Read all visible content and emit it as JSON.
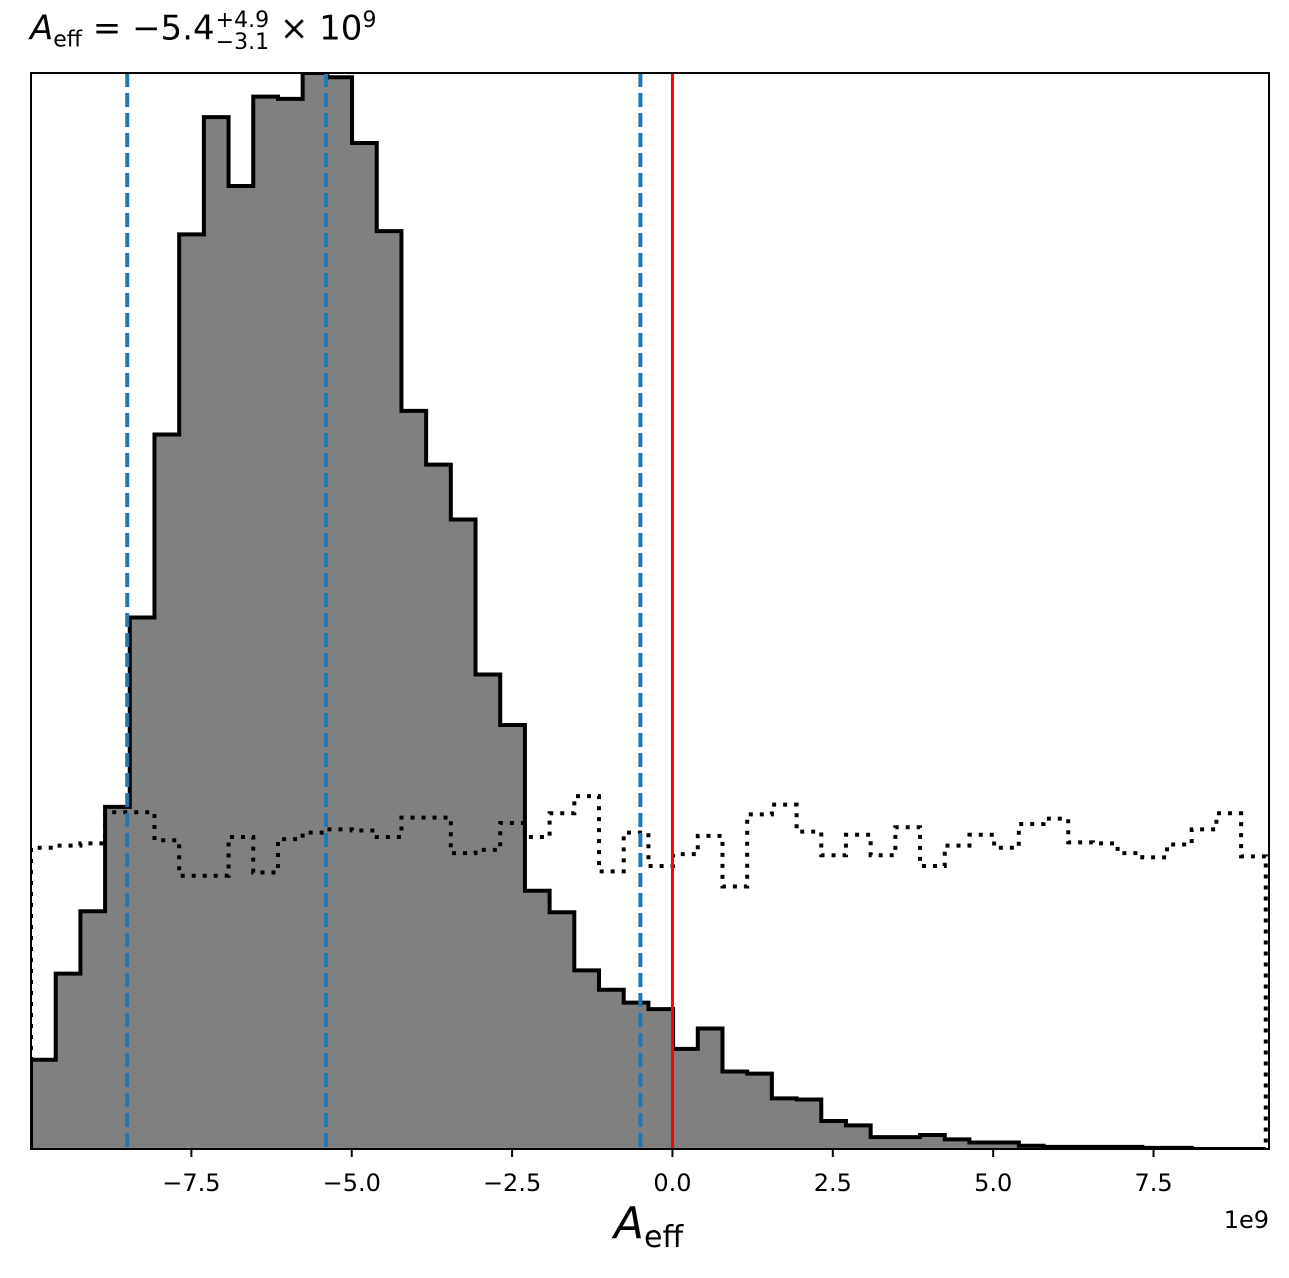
{
  "chart_data": {
    "type": "histogram",
    "title": {
      "symbol": "A",
      "symbol_sub": "eff",
      "median_text": " = −5.4",
      "err_plus": "+4.9",
      "err_minus": "−3.1",
      "multiplier_text": " × 10",
      "exponent": "9"
    },
    "xlabel": {
      "symbol": "A",
      "sub": "eff"
    },
    "x_offset_label": "1e9",
    "x_unit_scale": 1000000000,
    "xlim": [
      -10.0,
      9.3
    ],
    "ylim": [
      0,
      1.0
    ],
    "xticks": [
      -7.5,
      -5.0,
      -2.5,
      0.0,
      2.5,
      5.0,
      7.5
    ],
    "xtick_labels": [
      "−7.5",
      "−5.0",
      "−2.5",
      "0.0",
      "2.5",
      "5.0",
      "7.5"
    ],
    "y_axis_visible": false,
    "grid": false,
    "posterior": {
      "fill_color": "#808080",
      "edge_color": "#000000",
      "bin_edges": [
        -10.0,
        -9.615,
        -9.23,
        -8.845,
        -8.46,
        -8.075,
        -7.69,
        -7.305,
        -6.92,
        -6.535,
        -6.15,
        -5.765,
        -5.38,
        -4.995,
        -4.61,
        -4.225,
        -3.84,
        -3.455,
        -3.07,
        -2.685,
        -2.3,
        -1.915,
        -1.53,
        -1.145,
        -0.76,
        -0.375,
        0.01,
        0.395,
        0.78,
        1.165,
        1.55,
        1.935,
        2.32,
        2.705,
        3.09,
        3.475,
        3.86,
        4.245,
        4.63,
        5.015,
        5.4,
        5.785,
        6.17,
        6.555,
        6.94,
        7.325,
        7.71,
        8.095,
        8.48,
        8.865,
        9.25
      ],
      "counts": [
        0.083,
        0.163,
        0.221,
        0.318,
        0.494,
        0.664,
        0.85,
        0.959,
        0.895,
        0.978,
        0.976,
        1.0,
        0.996,
        0.935,
        0.853,
        0.686,
        0.636,
        0.585,
        0.441,
        0.394,
        0.24,
        0.22,
        0.166,
        0.148,
        0.136,
        0.13,
        0.093,
        0.112,
        0.072,
        0.07,
        0.047,
        0.046,
        0.026,
        0.022,
        0.011,
        0.011,
        0.013,
        0.009,
        0.006,
        0.006,
        0.003,
        0.002,
        0.002,
        0.002,
        0.002,
        0.001,
        0.001,
        0.0,
        0.0,
        0.0
      ]
    },
    "prior": {
      "style": "dotted",
      "color": "#000000",
      "bin_edges": [
        -10.0,
        -9.615,
        -9.23,
        -8.845,
        -8.46,
        -8.075,
        -7.69,
        -7.305,
        -6.92,
        -6.535,
        -6.15,
        -5.765,
        -5.38,
        -4.995,
        -4.61,
        -4.225,
        -3.84,
        -3.455,
        -3.07,
        -2.685,
        -2.3,
        -1.915,
        -1.53,
        -1.145,
        -0.76,
        -0.375,
        0.01,
        0.395,
        0.78,
        1.165,
        1.55,
        1.935,
        2.32,
        2.705,
        3.09,
        3.475,
        3.86,
        4.245,
        4.63,
        5.015,
        5.4,
        5.785,
        6.17,
        6.555,
        6.94,
        7.325,
        7.71,
        8.095,
        8.48,
        8.865,
        9.25
      ],
      "counts": [
        0.28,
        0.282,
        0.284,
        0.313,
        0.313,
        0.287,
        0.254,
        0.254,
        0.29,
        0.257,
        0.288,
        0.294,
        0.297,
        0.296,
        0.29,
        0.308,
        0.308,
        0.275,
        0.278,
        0.303,
        0.29,
        0.312,
        0.328,
        0.258,
        0.294,
        0.263,
        0.274,
        0.291,
        0.244,
        0.311,
        0.32,
        0.295,
        0.273,
        0.292,
        0.273,
        0.299,
        0.263,
        0.282,
        0.292,
        0.28,
        0.302,
        0.307,
        0.285,
        0.284,
        0.275,
        0.271,
        0.283,
        0.297,
        0.312,
        0.272
      ]
    },
    "vlines": [
      {
        "x": -8.5,
        "color": "#1f77b4",
        "style": "dashed"
      },
      {
        "x": -5.4,
        "color": "#1f77b4",
        "style": "dashed"
      },
      {
        "x": -0.5,
        "color": "#1f77b4",
        "style": "dashed"
      },
      {
        "x": 0.0,
        "color": "#ff0000",
        "style": "solid"
      }
    ]
  }
}
